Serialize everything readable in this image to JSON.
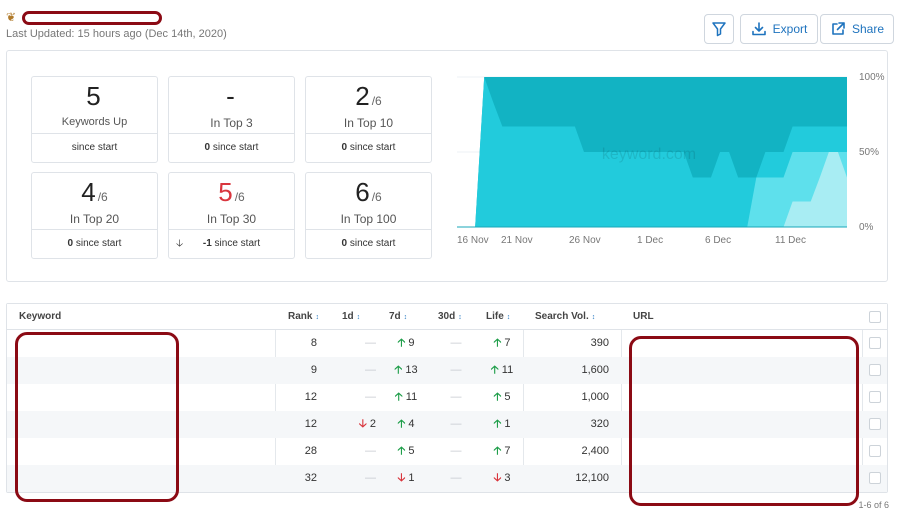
{
  "header": {
    "last_updated": "Last Updated: 15 hours ago (Dec 14th, 2020)",
    "export_label": "Export",
    "share_label": "Share"
  },
  "summary": [
    {
      "value": "5",
      "denominator": "",
      "label": "Keywords Up",
      "change": "",
      "change_text": "since start",
      "value_color": "#222222"
    },
    {
      "value": "-",
      "denominator": "",
      "label": "In Top 3",
      "change": "0",
      "change_text": "since start",
      "value_color": "#222222"
    },
    {
      "value": "2",
      "denominator": "/6",
      "label": "In Top 10",
      "change": "0",
      "change_text": "since start",
      "value_color": "#222222"
    },
    {
      "value": "4",
      "denominator": "/6",
      "label": "In Top 20",
      "change": "0",
      "change_text": "since start",
      "value_color": "#222222"
    },
    {
      "value": "5",
      "denominator": "/6",
      "label": "In Top 30",
      "change": "-1",
      "change_text": "since start",
      "value_color": "#d9363e"
    },
    {
      "value": "6",
      "denominator": "/6",
      "label": "In Top 100",
      "change": "0",
      "change_text": "since start",
      "value_color": "#222222"
    }
  ],
  "chart_data": {
    "type": "area",
    "x_ticks": [
      "16 Nov",
      "21 Nov",
      "26 Nov",
      "1 Dec",
      "6 Dec",
      "11 Dec"
    ],
    "y_ticks": [
      "100%",
      "50%",
      "0%"
    ],
    "watermark": "keyword.com",
    "ylim": [
      0,
      100
    ],
    "colors": [
      "#a8edf3",
      "#5ee0ec",
      "#22cbdc",
      "#12b3c3"
    ],
    "series": [
      {
        "values": [
          0,
          0,
          0,
          0,
          0,
          0,
          0,
          0,
          0,
          0,
          0,
          0,
          0,
          0,
          0,
          0,
          0,
          0,
          0,
          0,
          0,
          0,
          0,
          0,
          0,
          0,
          0,
          0,
          0,
          0,
          0,
          0,
          0,
          0,
          0,
          0,
          0,
          17,
          17,
          17,
          33,
          50,
          50,
          33
        ]
      },
      {
        "values": [
          0,
          0,
          0,
          0,
          0,
          0,
          0,
          0,
          0,
          0,
          0,
          0,
          0,
          0,
          0,
          0,
          0,
          0,
          0,
          0,
          0,
          0,
          0,
          0,
          0,
          0,
          0,
          0,
          0,
          0,
          0,
          0,
          0,
          33,
          33,
          33,
          33,
          50,
          50,
          50,
          50,
          50,
          50,
          50
        ]
      },
      {
        "values": [
          0,
          0,
          0,
          100,
          83,
          67,
          67,
          67,
          67,
          67,
          67,
          67,
          67,
          67,
          50,
          50,
          50,
          50,
          50,
          50,
          50,
          50,
          50,
          50,
          50,
          50,
          33,
          33,
          33,
          50,
          50,
          33,
          33,
          33,
          50,
          50,
          50,
          67,
          67,
          67,
          67,
          67,
          67,
          67
        ]
      },
      {
        "values": [
          0,
          0,
          0,
          100,
          100,
          100,
          100,
          100,
          100,
          100,
          100,
          100,
          100,
          100,
          100,
          100,
          100,
          100,
          100,
          100,
          100,
          100,
          100,
          100,
          100,
          100,
          100,
          100,
          100,
          100,
          100,
          100,
          100,
          100,
          100,
          100,
          100,
          100,
          100,
          100,
          100,
          100,
          100,
          100
        ]
      }
    ]
  },
  "table": {
    "columns": [
      "Keyword",
      "Rank",
      "1d",
      "7d",
      "30d",
      "Life",
      "Search Vol.",
      "URL"
    ],
    "rows": [
      {
        "rank": "8",
        "d1": "—",
        "d1_dir": "",
        "d7": "9",
        "d7_dir": "up",
        "d30": "—",
        "d30_dir": "",
        "life": "7",
        "life_dir": "up",
        "vol": "390"
      },
      {
        "rank": "9",
        "d1": "—",
        "d1_dir": "",
        "d7": "13",
        "d7_dir": "up",
        "d30": "—",
        "d30_dir": "",
        "life": "11",
        "life_dir": "up",
        "vol": "1,600"
      },
      {
        "rank": "12",
        "d1": "—",
        "d1_dir": "",
        "d7": "11",
        "d7_dir": "up",
        "d30": "—",
        "d30_dir": "",
        "life": "5",
        "life_dir": "up",
        "vol": "1,000"
      },
      {
        "rank": "12",
        "d1": "2",
        "d1_dir": "down",
        "d7": "4",
        "d7_dir": "up",
        "d30": "—",
        "d30_dir": "",
        "life": "1",
        "life_dir": "up",
        "vol": "320"
      },
      {
        "rank": "28",
        "d1": "—",
        "d1_dir": "",
        "d7": "5",
        "d7_dir": "up",
        "d30": "—",
        "d30_dir": "",
        "life": "7",
        "life_dir": "up",
        "vol": "2,400"
      },
      {
        "rank": "32",
        "d1": "—",
        "d1_dir": "",
        "d7": "1",
        "d7_dir": "down",
        "d30": "—",
        "d30_dir": "",
        "life": "3",
        "life_dir": "down",
        "vol": "12,100"
      }
    ],
    "pagination": "1-6 of 6"
  },
  "icons": {
    "filter": "filter-icon",
    "export": "download-icon",
    "share": "external-link-icon",
    "up": "arrow-up-icon",
    "down": "arrow-down-icon"
  }
}
